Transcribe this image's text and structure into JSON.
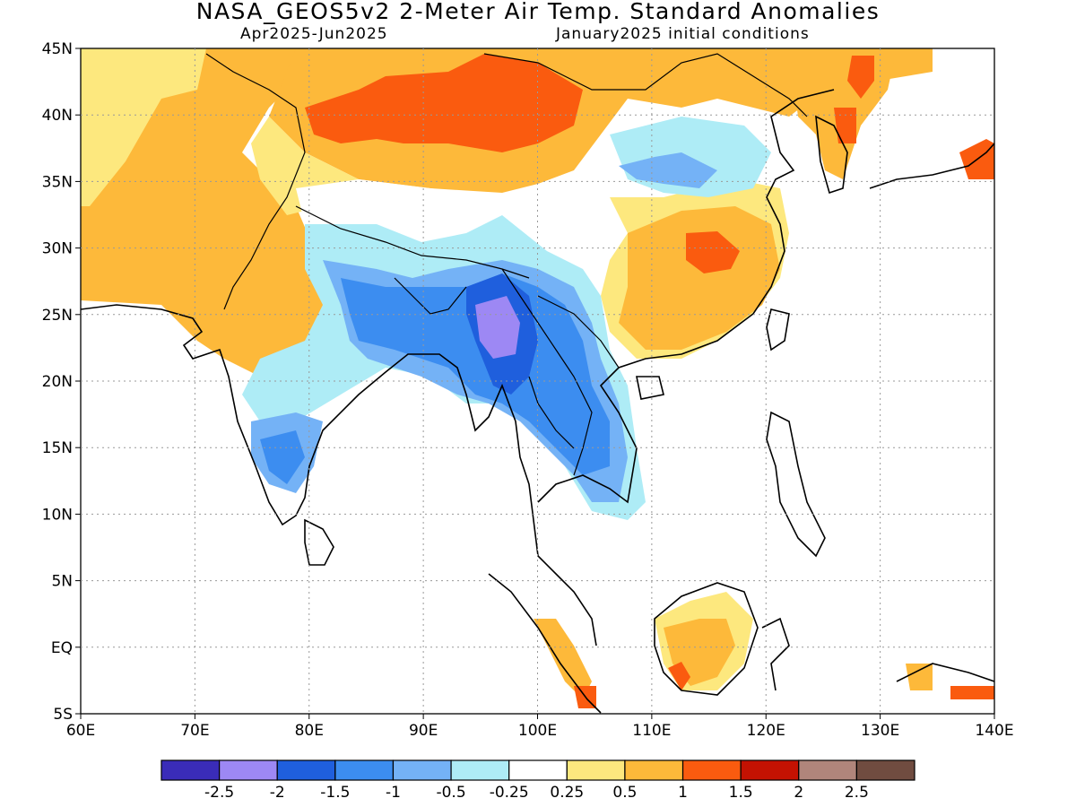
{
  "header": {
    "title": "NASA_GEOS5v2 2-Meter Air Temp. Standard Anomalies",
    "subtitle_left": "Apr2025-Jun2025",
    "subtitle_right": "January2025 initial conditions"
  },
  "map": {
    "lon_labels": [
      "60E",
      "70E",
      "80E",
      "90E",
      "100E",
      "110E",
      "120E",
      "130E",
      "140E"
    ],
    "lat_labels": [
      "45N",
      "40N",
      "35N",
      "30N",
      "25N",
      "20N",
      "15N",
      "10N",
      "5N",
      "EQ",
      "5S"
    ]
  },
  "colorbar": {
    "colors": [
      "#3a2cb8",
      "#9d88f4",
      "#1f5fdd",
      "#3c8df0",
      "#74b2f6",
      "#aeecf6",
      "#ffffff",
      "#fde87e",
      "#fdb93a",
      "#fa5b0f",
      "#c41202",
      "#b0857b",
      "#704c40"
    ],
    "labels": [
      "-2.5",
      "-2",
      "-1.5",
      "-1",
      "-0.5",
      "-0.25",
      "0.25",
      "0.5",
      "1",
      "1.5",
      "2",
      "2.5"
    ]
  }
}
